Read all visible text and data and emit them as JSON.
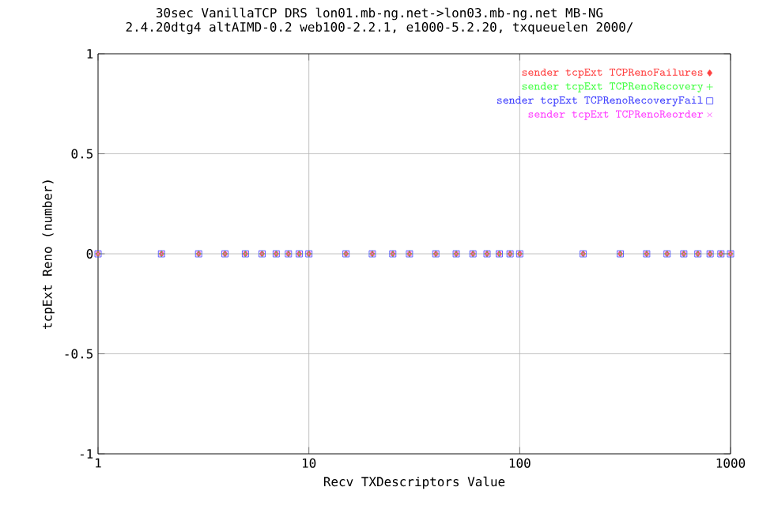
{
  "chart_data": {
    "type": "scatter",
    "title": "30sec VanillaTCP DRS lon01.mb-ng.net->lon03.mb-ng.net MB-NG",
    "subtitle": "2.4.20dtg4 altAIMD-0.2 web100-2.2.1, e1000-5.2.20, txqueuelen 2000/",
    "xlabel": "Recv TXDescriptors Value",
    "ylabel": "tcpExt Reno (number)",
    "x": [
      1,
      2,
      3,
      4,
      5,
      6,
      7,
      8,
      9,
      10,
      15,
      20,
      25,
      30,
      40,
      50,
      60,
      70,
      80,
      90,
      100,
      200,
      300,
      400,
      500,
      600,
      700,
      800,
      900,
      1000
    ],
    "series": [
      {
        "name": "sender tcpExt TCPRenoFailures",
        "color": "#ff4040",
        "marker": "diamond",
        "values": [
          0,
          0,
          0,
          0,
          0,
          0,
          0,
          0,
          0,
          0,
          0,
          0,
          0,
          0,
          0,
          0,
          0,
          0,
          0,
          0,
          0,
          0,
          0,
          0,
          0,
          0,
          0,
          0,
          0,
          0
        ]
      },
      {
        "name": "sender tcpExt TCPRenoRecovery",
        "color": "#40ff40",
        "values": [
          0,
          0,
          0,
          0,
          0,
          0,
          0,
          0,
          0,
          0,
          0,
          0,
          0,
          0,
          0,
          0,
          0,
          0,
          0,
          0,
          0,
          0,
          0,
          0,
          0,
          0,
          0,
          0,
          0,
          0
        ]
      },
      {
        "name": "sender tcpExt TCPRenoRecoveryFail",
        "color": "#4040ff",
        "marker": "square",
        "values": [
          0,
          0,
          0,
          0,
          0,
          0,
          0,
          0,
          0,
          0,
          0,
          0,
          0,
          0,
          0,
          0,
          0,
          0,
          0,
          0,
          0,
          0,
          0,
          0,
          0,
          0,
          0,
          0,
          0,
          0
        ]
      },
      {
        "name": "sender tcpExt TCPRenoReorder",
        "color": "#ff40ff",
        "marker": "cross",
        "values": [
          0,
          0,
          0,
          0,
          0,
          0,
          0,
          0,
          0,
          0,
          0,
          0,
          0,
          0,
          0,
          0,
          0,
          0,
          0,
          0,
          0,
          0,
          0,
          0,
          0,
          0,
          0,
          0,
          0,
          0
        ]
      }
    ],
    "log": "x",
    "xlim": [
      1,
      1000
    ],
    "xticks": [
      1,
      10,
      100,
      1000
    ],
    "ylim": [
      -1,
      1
    ],
    "yticks": [
      -1,
      -0.5,
      0,
      0.5,
      1
    ],
    "grid": true,
    "legend": "top right"
  }
}
